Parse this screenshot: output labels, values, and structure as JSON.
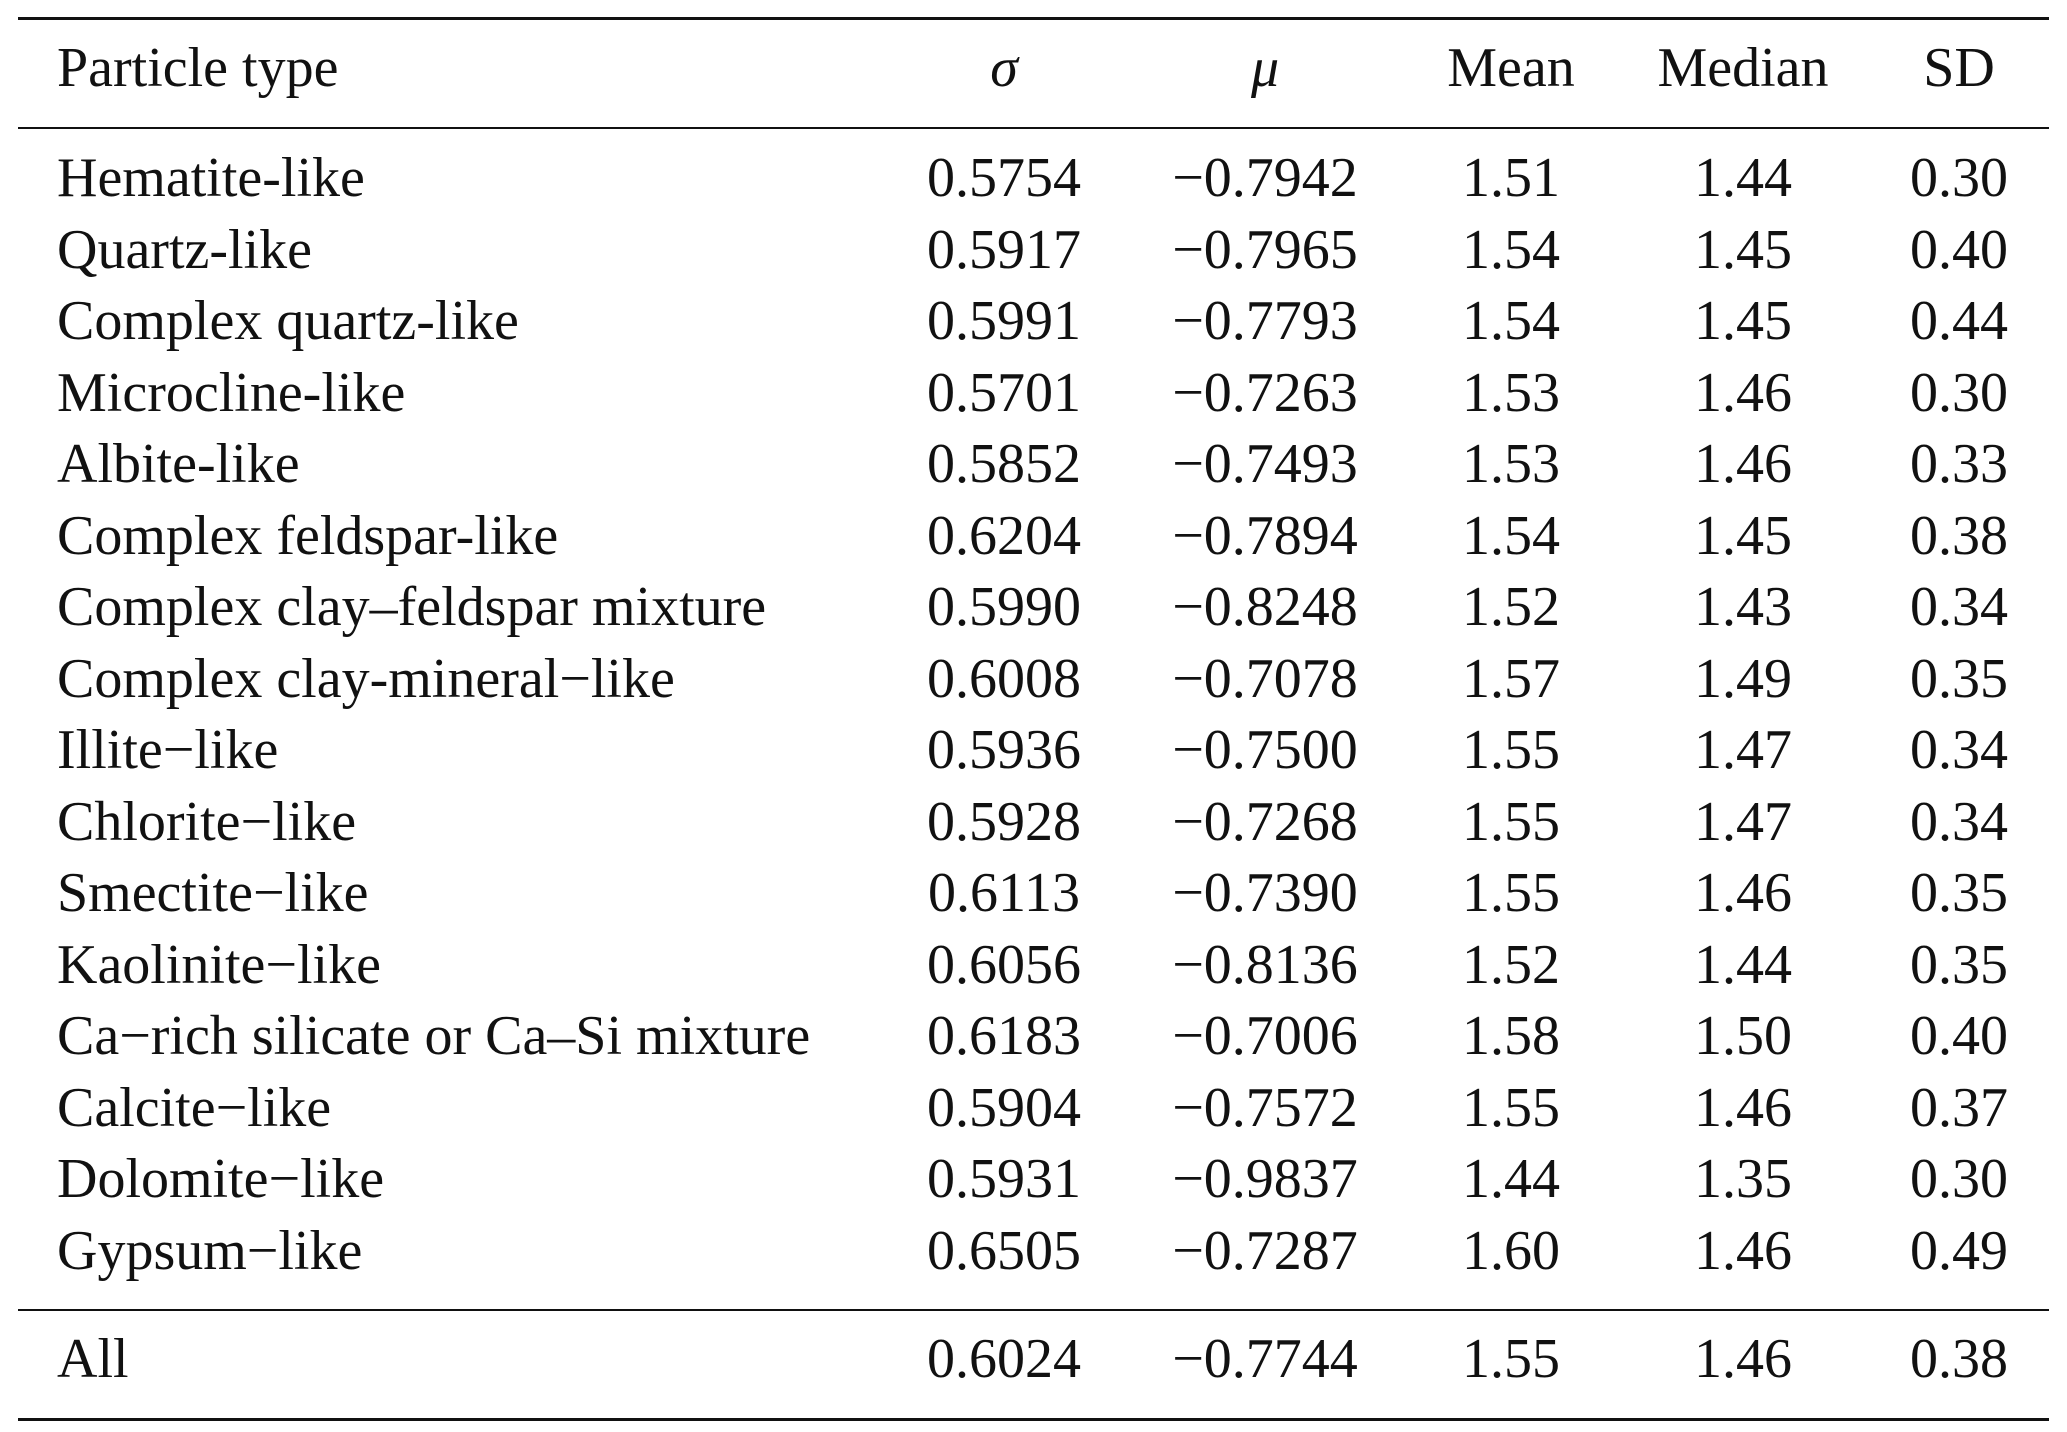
{
  "table": {
    "columns": {
      "particle_type": "Particle type",
      "sigma": "σ",
      "mu": "μ",
      "mean": "Mean",
      "median": "Median",
      "sd": "SD"
    },
    "rows": [
      {
        "particle_type": "Hematite-like",
        "sigma": "0.5754",
        "mu": "−0.7942",
        "mean": "1.51",
        "median": "1.44",
        "sd": "0.30"
      },
      {
        "particle_type": "Quartz-like",
        "sigma": "0.5917",
        "mu": "−0.7965",
        "mean": "1.54",
        "median": "1.45",
        "sd": "0.40"
      },
      {
        "particle_type": "Complex quartz-like",
        "sigma": "0.5991",
        "mu": "−0.7793",
        "mean": "1.54",
        "median": "1.45",
        "sd": "0.44"
      },
      {
        "particle_type": "Microcline-like",
        "sigma": "0.5701",
        "mu": "−0.7263",
        "mean": "1.53",
        "median": "1.46",
        "sd": "0.30"
      },
      {
        "particle_type": "Albite-like",
        "sigma": "0.5852",
        "mu": "−0.7493",
        "mean": "1.53",
        "median": "1.46",
        "sd": "0.33"
      },
      {
        "particle_type": "Complex feldspar-like",
        "sigma": "0.6204",
        "mu": "−0.7894",
        "mean": "1.54",
        "median": "1.45",
        "sd": "0.38"
      },
      {
        "particle_type": "Complex clay–feldspar mixture",
        "sigma": "0.5990",
        "mu": "−0.8248",
        "mean": "1.52",
        "median": "1.43",
        "sd": "0.34"
      },
      {
        "particle_type": "Complex clay-mineral−like",
        "sigma": "0.6008",
        "mu": "−0.7078",
        "mean": "1.57",
        "median": "1.49",
        "sd": "0.35"
      },
      {
        "particle_type": "Illite−like",
        "sigma": "0.5936",
        "mu": "−0.7500",
        "mean": "1.55",
        "median": "1.47",
        "sd": "0.34"
      },
      {
        "particle_type": "Chlorite−like",
        "sigma": "0.5928",
        "mu": "−0.7268",
        "mean": "1.55",
        "median": "1.47",
        "sd": "0.34"
      },
      {
        "particle_type": "Smectite−like",
        "sigma": "0.6113",
        "mu": "−0.7390",
        "mean": "1.55",
        "median": "1.46",
        "sd": "0.35"
      },
      {
        "particle_type": "Kaolinite−like",
        "sigma": "0.6056",
        "mu": "−0.8136",
        "mean": "1.52",
        "median": "1.44",
        "sd": "0.35"
      },
      {
        "particle_type": "Ca−rich silicate or Ca–Si mixture",
        "sigma": "0.6183",
        "mu": "−0.7006",
        "mean": "1.58",
        "median": "1.50",
        "sd": "0.40"
      },
      {
        "particle_type": "Calcite−like",
        "sigma": "0.5904",
        "mu": "−0.7572",
        "mean": "1.55",
        "median": "1.46",
        "sd": "0.37"
      },
      {
        "particle_type": "Dolomite−like",
        "sigma": "0.5931",
        "mu": "−0.9837",
        "mean": "1.44",
        "median": "1.35",
        "sd": "0.30"
      },
      {
        "particle_type": "Gypsum−like",
        "sigma": "0.6505",
        "mu": "−0.7287",
        "mean": "1.60",
        "median": "1.46",
        "sd": "0.49"
      }
    ],
    "summary_row": {
      "particle_type": "All",
      "sigma": "0.6024",
      "mu": "−0.7744",
      "mean": "1.55",
      "median": "1.46",
      "sd": "0.38"
    }
  }
}
